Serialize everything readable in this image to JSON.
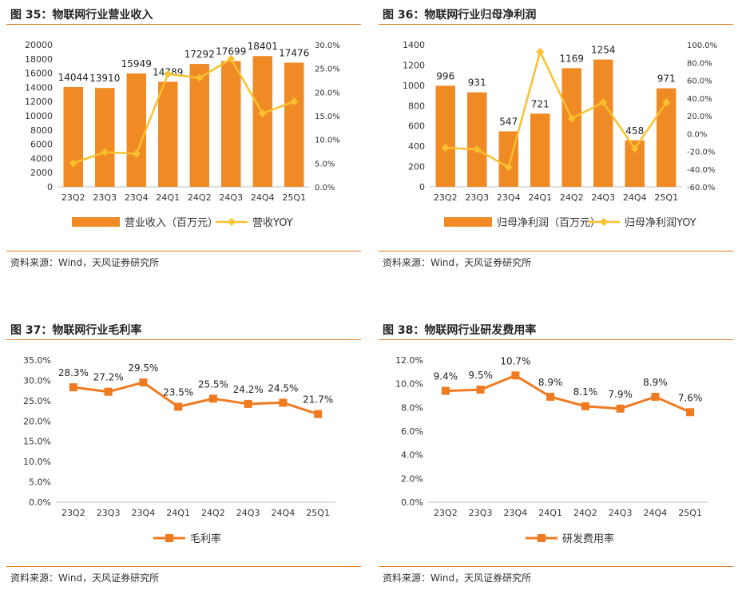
{
  "colors": {
    "bar": "#f08a24",
    "line": "#fbc02d",
    "orange_line": "#f07a20",
    "rule": "#e07b20"
  },
  "panels": [
    {
      "title": "图 35：物联网行业营业收入",
      "source": "资料来源：Wind，天风证券研究所"
    },
    {
      "title": "图 36：物联网行业归母净利润",
      "source": "资料来源：Wind，天风证券研究所"
    },
    {
      "title": "图 37：物联网行业毛利率",
      "source": "资料来源：Wind，天风证券研究所"
    },
    {
      "title": "图 38：物联网行业研发费用率",
      "source": "资料来源：Wind，天风证券研究所"
    }
  ],
  "chart_data": [
    {
      "type": "bar",
      "categories": [
        "23Q2",
        "23Q3",
        "23Q4",
        "24Q1",
        "24Q2",
        "24Q3",
        "24Q4",
        "25Q1"
      ],
      "series": [
        {
          "name": "营业收入（百万元）",
          "type": "bar",
          "axis": "left",
          "values": [
            14044,
            13910,
            15949,
            14789,
            17292,
            17699,
            18401,
            17476
          ],
          "labels": [
            "14044",
            "13910",
            "15949",
            "14789",
            "17292",
            "17699",
            "18401",
            "17476"
          ]
        },
        {
          "name": "营收YOY",
          "type": "line",
          "axis": "right",
          "values": [
            5.0,
            7.3,
            7.0,
            23.8,
            23.0,
            27.0,
            15.5,
            18.0
          ]
        }
      ],
      "ylim_left": [
        0,
        20000
      ],
      "yticks_left": [
        "0",
        "2000",
        "4000",
        "6000",
        "8000",
        "10000",
        "12000",
        "14000",
        "16000",
        "18000",
        "20000"
      ],
      "ylim_right": [
        0,
        30
      ],
      "yticks_right": [
        "0.0%",
        "5.0%",
        "10.0%",
        "15.0%",
        "20.0%",
        "25.0%",
        "30.0%"
      ],
      "legend": "bottom"
    },
    {
      "type": "bar",
      "categories": [
        "23Q2",
        "23Q3",
        "23Q4",
        "24Q1",
        "24Q2",
        "24Q3",
        "24Q4",
        "25Q1"
      ],
      "series": [
        {
          "name": "归母净利润（百万元）",
          "type": "bar",
          "axis": "left",
          "values": [
            996,
            931,
            547,
            721,
            1169,
            1254,
            458,
            971
          ],
          "labels": [
            "996",
            "931",
            "547",
            "721",
            "1169",
            "1254",
            "458",
            "971"
          ]
        },
        {
          "name": "归母净利润YOY",
          "type": "line",
          "axis": "right",
          "values": [
            -16,
            -18,
            -38,
            92,
            17,
            35,
            -17,
            35
          ]
        }
      ],
      "ylim_left": [
        0,
        1400
      ],
      "yticks_left": [
        "0",
        "200",
        "400",
        "600",
        "800",
        "1000",
        "1200",
        "1400"
      ],
      "ylim_right": [
        -60,
        100
      ],
      "yticks_right": [
        "-60.0%",
        "-40.0%",
        "-20.0%",
        "0.0%",
        "20.0%",
        "40.0%",
        "60.0%",
        "80.0%",
        "100.0%"
      ],
      "legend": "bottom"
    },
    {
      "type": "line",
      "categories": [
        "23Q2",
        "23Q3",
        "23Q4",
        "24Q1",
        "24Q2",
        "24Q3",
        "24Q4",
        "25Q1"
      ],
      "series": [
        {
          "name": "毛利率",
          "values": [
            28.3,
            27.2,
            29.5,
            23.5,
            25.5,
            24.2,
            24.5,
            21.7
          ],
          "labels": [
            "28.3%",
            "27.2%",
            "29.5%",
            "23.5%",
            "25.5%",
            "24.2%",
            "24.5%",
            "21.7%"
          ]
        }
      ],
      "ylim": [
        0,
        35
      ],
      "yticks": [
        "0.0%",
        "5.0%",
        "10.0%",
        "15.0%",
        "20.0%",
        "25.0%",
        "30.0%",
        "35.0%"
      ],
      "legend": "bottom"
    },
    {
      "type": "line",
      "categories": [
        "23Q2",
        "23Q3",
        "23Q4",
        "24Q1",
        "24Q2",
        "24Q3",
        "24Q4",
        "25Q1"
      ],
      "series": [
        {
          "name": "研发费用率",
          "values": [
            9.4,
            9.5,
            10.7,
            8.9,
            8.1,
            7.9,
            8.9,
            7.6
          ],
          "labels": [
            "9.4%",
            "9.5%",
            "10.7%",
            "8.9%",
            "8.1%",
            "7.9%",
            "8.9%",
            "7.6%"
          ]
        }
      ],
      "ylim": [
        0,
        12
      ],
      "yticks": [
        "0.0%",
        "2.0%",
        "4.0%",
        "6.0%",
        "8.0%",
        "10.0%",
        "12.0%"
      ],
      "legend": "bottom"
    }
  ]
}
